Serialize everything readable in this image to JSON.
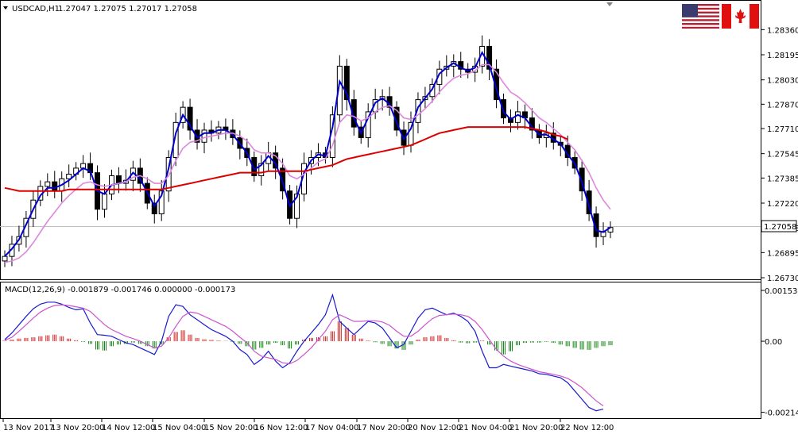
{
  "header": {
    "symbol": "USDCAD,H1",
    "ohlc": "1.27047 1.27075 1.27017 1.27058"
  },
  "flags": {
    "left": "us-flag",
    "right": "canada-flag"
  },
  "colors": {
    "bull_candle": "#000000",
    "bear_candle": "#000000",
    "ma_blue": "#0000cc",
    "ma_violet": "#dd88dd",
    "ma_red": "#dd0000",
    "macd_line": "#1a1ad0",
    "macd_signal": "#cc55cc",
    "hist_pos": "#cc2222",
    "hist_neg": "#118811",
    "current_price_box": "#ffffff"
  },
  "chart_data": [
    {
      "type": "candlestick",
      "title": "USDCAD,H1",
      "ylim": [
        1.2673,
        1.2844
      ],
      "y_ticks": [
        "1.28360",
        "1.28195",
        "1.28030",
        "1.27870",
        "1.27710",
        "1.27545",
        "1.27385",
        "1.27220",
        "1.27058",
        "1.26895",
        "1.26730"
      ],
      "current_price": "1.27058",
      "x_tick_labels": [
        "13 Nov 2017",
        "13 Nov 20:00",
        "14 Nov 12:00",
        "15 Nov 04:00",
        "15 Nov 20:00",
        "16 Nov 12:00",
        "17 Nov 04:00",
        "17 Nov 20:00",
        "20 Nov 12:00",
        "21 Nov 04:00",
        "21 Nov 20:00",
        "22 Nov 12:00"
      ],
      "close": [
        1.2687,
        1.2695,
        1.27,
        1.2712,
        1.2724,
        1.2733,
        1.2736,
        1.273,
        1.2738,
        1.2741,
        1.2745,
        1.2748,
        1.2742,
        1.2718,
        1.2728,
        1.274,
        1.2735,
        1.2737,
        1.2745,
        1.2735,
        1.2722,
        1.2715,
        1.273,
        1.2752,
        1.2775,
        1.2785,
        1.277,
        1.2762,
        1.277,
        1.2768,
        1.2772,
        1.277,
        1.2765,
        1.2758,
        1.2752,
        1.274,
        1.2748,
        1.2755,
        1.2745,
        1.273,
        1.2712,
        1.2728,
        1.2748,
        1.2752,
        1.2755,
        1.2752,
        1.278,
        1.2812,
        1.279,
        1.2772,
        1.2765,
        1.2782,
        1.279,
        1.2792,
        1.2785,
        1.277,
        1.276,
        1.2775,
        1.279,
        1.2792,
        1.28,
        1.281,
        1.2812,
        1.2815,
        1.281,
        1.2808,
        1.2812,
        1.2825,
        1.281,
        1.279,
        1.2778,
        1.2775,
        1.2782,
        1.2778,
        1.277,
        1.2765,
        1.2768,
        1.2762,
        1.276,
        1.2752,
        1.2745,
        1.273,
        1.2715,
        1.27,
        1.2703,
        1.2706
      ],
      "series": [
        {
          "name": "",
          "kind": "ma_fast",
          "color": "#0000cc",
          "values": [
            1.2687,
            1.2692,
            1.2698,
            1.2708,
            1.2718,
            1.2727,
            1.2732,
            1.2732,
            1.2734,
            1.2737,
            1.2741,
            1.2745,
            1.2743,
            1.273,
            1.2728,
            1.2734,
            1.2735,
            1.2736,
            1.2742,
            1.2738,
            1.2729,
            1.272,
            1.2727,
            1.2745,
            1.2768,
            1.278,
            1.2773,
            1.2765,
            1.2768,
            1.2768,
            1.277,
            1.277,
            1.2767,
            1.2761,
            1.2755,
            1.2744,
            1.2747,
            1.2753,
            1.2748,
            1.2736,
            1.272,
            1.2726,
            1.2742,
            1.275,
            1.2754,
            1.2753,
            1.2772,
            1.2802,
            1.2794,
            1.2778,
            1.2768,
            1.2778,
            1.2788,
            1.2791,
            1.2787,
            1.2775,
            1.2764,
            1.2771,
            1.2785,
            1.2791,
            1.2797,
            1.2807,
            1.2811,
            1.2814,
            1.2811,
            1.2809,
            1.2811,
            1.2821,
            1.2813,
            1.2797,
            1.2782,
            1.2777,
            1.278,
            1.2778,
            1.2772,
            1.2767,
            1.2767,
            1.2764,
            1.2761,
            1.2754,
            1.2748,
            1.2736,
            1.272,
            1.2704,
            1.2703,
            1.2706
          ]
        },
        {
          "name": "",
          "kind": "ma_medium",
          "color": "#dd88dd",
          "values": [
            1.2683,
            1.2684,
            1.2686,
            1.269,
            1.2696,
            1.2703,
            1.271,
            1.2716,
            1.2722,
            1.2727,
            1.2731,
            1.2735,
            1.2736,
            1.2734,
            1.2733,
            1.2734,
            1.2735,
            1.2736,
            1.2739,
            1.274,
            1.2738,
            1.2735,
            1.2735,
            1.274,
            1.275,
            1.2758,
            1.2762,
            1.2763,
            1.2765,
            1.2766,
            1.2767,
            1.2768,
            1.2768,
            1.2766,
            1.2763,
            1.2757,
            1.2755,
            1.2755,
            1.2753,
            1.2748,
            1.274,
            1.2738,
            1.2741,
            1.2745,
            1.2749,
            1.2751,
            1.276,
            1.2775,
            1.278,
            1.2779,
            1.2776,
            1.2778,
            1.2782,
            1.2785,
            1.2786,
            1.2783,
            1.2778,
            1.2777,
            1.278,
            1.2784,
            1.2789,
            1.2795,
            1.28,
            1.2804,
            1.2806,
            1.2807,
            1.2809,
            1.2813,
            1.2813,
            1.2808,
            1.2801,
            1.2795,
            1.2792,
            1.2788,
            1.2783,
            1.2778,
            1.2775,
            1.2771,
            1.2767,
            1.2762,
            1.2757,
            1.275,
            1.2742,
            1.2732,
            1.2724,
            1.2718
          ]
        },
        {
          "name": "",
          "kind": "ma_slow",
          "color": "#dd0000",
          "values": [
            1.2732,
            1.2731,
            1.273,
            1.273,
            1.273,
            1.273,
            1.273,
            1.273,
            1.273,
            1.2731,
            1.2731,
            1.2731,
            1.2731,
            1.2731,
            1.2731,
            1.2731,
            1.2731,
            1.2731,
            1.2731,
            1.2731,
            1.2731,
            1.2731,
            1.2731,
            1.2732,
            1.2733,
            1.2734,
            1.2735,
            1.2736,
            1.2737,
            1.2738,
            1.2739,
            1.274,
            1.2741,
            1.2742,
            1.2742,
            1.2742,
            1.2742,
            1.2743,
            1.2743,
            1.2743,
            1.2743,
            1.2743,
            1.2743,
            1.2744,
            1.2745,
            1.2746,
            1.2747,
            1.2749,
            1.2751,
            1.2752,
            1.2753,
            1.2754,
            1.2755,
            1.2756,
            1.2757,
            1.2758,
            1.2759,
            1.276,
            1.2762,
            1.2764,
            1.2766,
            1.2768,
            1.2769,
            1.277,
            1.2771,
            1.2772,
            1.2772,
            1.2772,
            1.2772,
            1.2772,
            1.2772,
            1.2772,
            1.2772,
            1.2772,
            1.2771,
            1.277,
            1.2769,
            1.2767,
            1.2766,
            1.2764
          ]
        }
      ]
    },
    {
      "type": "bar",
      "title": "MACD(12,26,9) -0.001879 -0.001746 0.000000 -0.000173",
      "ylim": [
        -0.00225,
        0.00163
      ],
      "y_ticks": [
        "0.001534",
        "0.00",
        "-0.002144"
      ],
      "histogram": [
        2e-05,
        5e-05,
        8e-05,
        0.0001,
        0.00012,
        0.00015,
        0.00018,
        0.0002,
        0.00015,
        8e-05,
        3e-05,
        -2e-05,
        -8e-05,
        -0.00025,
        -0.00028,
        -0.00015,
        -0.0001,
        -8e-05,
        -4e-05,
        -8e-05,
        -0.00015,
        -0.00022,
        -0.0001,
        0.00012,
        0.00028,
        0.00033,
        0.0002,
        0.0001,
        6e-05,
        4e-05,
        2e-05,
        1e-05,
        -2e-05,
        -8e-05,
        -0.00015,
        -0.00025,
        -0.0002,
        -0.0001,
        -5e-05,
        -0.00012,
        -0.00022,
        -0.0001,
        5e-05,
        0.0001,
        0.00012,
        0.00015,
        0.0003,
        0.0006,
        0.0004,
        0.0002,
        8e-05,
        2e-05,
        -3e-05,
        -8e-05,
        -0.00015,
        -0.00022,
        -0.00026,
        -0.0001,
        5e-05,
        0.00012,
        0.00015,
        0.00018,
        0.0001,
        3e-05,
        -4e-05,
        -6e-05,
        -4e-05,
        2e-05,
        -0.0001,
        -0.00028,
        -0.0004,
        -0.0003,
        -0.00012,
        -5e-05,
        -4e-05,
        -4e-05,
        -2e-05,
        -5e-05,
        -0.0001,
        -0.00015,
        -0.0002,
        -0.00025,
        -0.00026,
        -0.0002,
        -0.00015,
        -0.00012
      ],
      "series": [
        {
          "name": "",
          "kind": "macd",
          "color": "#1a1ad0",
          "values": [
            5e-05,
            0.00025,
            0.0005,
            0.00075,
            0.00098,
            0.00112,
            0.00118,
            0.00118,
            0.00112,
            0.00102,
            0.00095,
            0.00098,
            0.00055,
            0.0002,
            0.00018,
            0.00015,
            5e-05,
            -5e-05,
            -0.0001,
            -0.0002,
            -0.0003,
            -0.0004,
            0.0,
            0.00075,
            0.0011,
            0.00105,
            0.0008,
            0.00065,
            0.0005,
            0.00035,
            0.00025,
            0.00015,
            0.0,
            -0.00025,
            -0.0004,
            -0.0007,
            -0.00055,
            -0.0003,
            -0.0006,
            -0.0008,
            -0.00065,
            -0.0003,
            0.0,
            0.00025,
            0.0005,
            0.0008,
            0.0014,
            0.0006,
            0.0004,
            0.0002,
            0.0004,
            0.0006,
            0.00055,
            0.0004,
            0.0001,
            -0.0002,
            -0.0001,
            0.0003,
            0.0007,
            0.00095,
            0.001,
            0.0009,
            0.0008,
            0.00085,
            0.00075,
            0.0006,
            0.0003,
            -0.0003,
            -0.0008,
            -0.0008,
            -0.0007,
            -0.00075,
            -0.0008,
            -0.00085,
            -0.0009,
            -0.00098,
            -0.001,
            -0.00105,
            -0.0011,
            -0.00125,
            -0.0015,
            -0.00175,
            -0.002,
            -0.0021,
            -0.00205
          ]
        },
        {
          "name": "",
          "kind": "signal",
          "color": "#cc55cc",
          "values": [
            3e-05,
            0.00012,
            0.0003,
            0.0005,
            0.0007,
            0.00088,
            0.001,
            0.00108,
            0.0011,
            0.00108,
            0.00104,
            0.001,
            0.0009,
            0.0007,
            0.0005,
            0.00035,
            0.00025,
            0.00015,
            8e-05,
            0.0,
            -0.0001,
            -0.0002,
            -0.00015,
            0.0001,
            0.00045,
            0.00075,
            0.00088,
            0.00085,
            0.00075,
            0.00065,
            0.00055,
            0.00045,
            0.0003,
            0.00012,
            -5e-05,
            -0.0003,
            -0.00045,
            -0.0005,
            -0.00055,
            -0.00065,
            -0.00068,
            -0.00058,
            -0.0004,
            -0.0002,
            5e-05,
            0.0003,
            0.00065,
            0.0008,
            0.0007,
            0.0006,
            0.0006,
            0.00062,
            0.00062,
            0.00058,
            0.00048,
            0.0003,
            0.00015,
            0.00015,
            0.0003,
            0.0005,
            0.00068,
            0.00078,
            0.0008,
            0.00082,
            0.0008,
            0.00075,
            0.0006,
            0.00035,
            5e-05,
            -0.00025,
            -0.00045,
            -0.0006,
            -0.0007,
            -0.00078,
            -0.00085,
            -0.00092,
            -0.00096,
            -0.001,
            -0.00105,
            -0.00112,
            -0.00125,
            -0.0014,
            -0.0016,
            -0.0018,
            -0.00195
          ]
        }
      ]
    }
  ]
}
